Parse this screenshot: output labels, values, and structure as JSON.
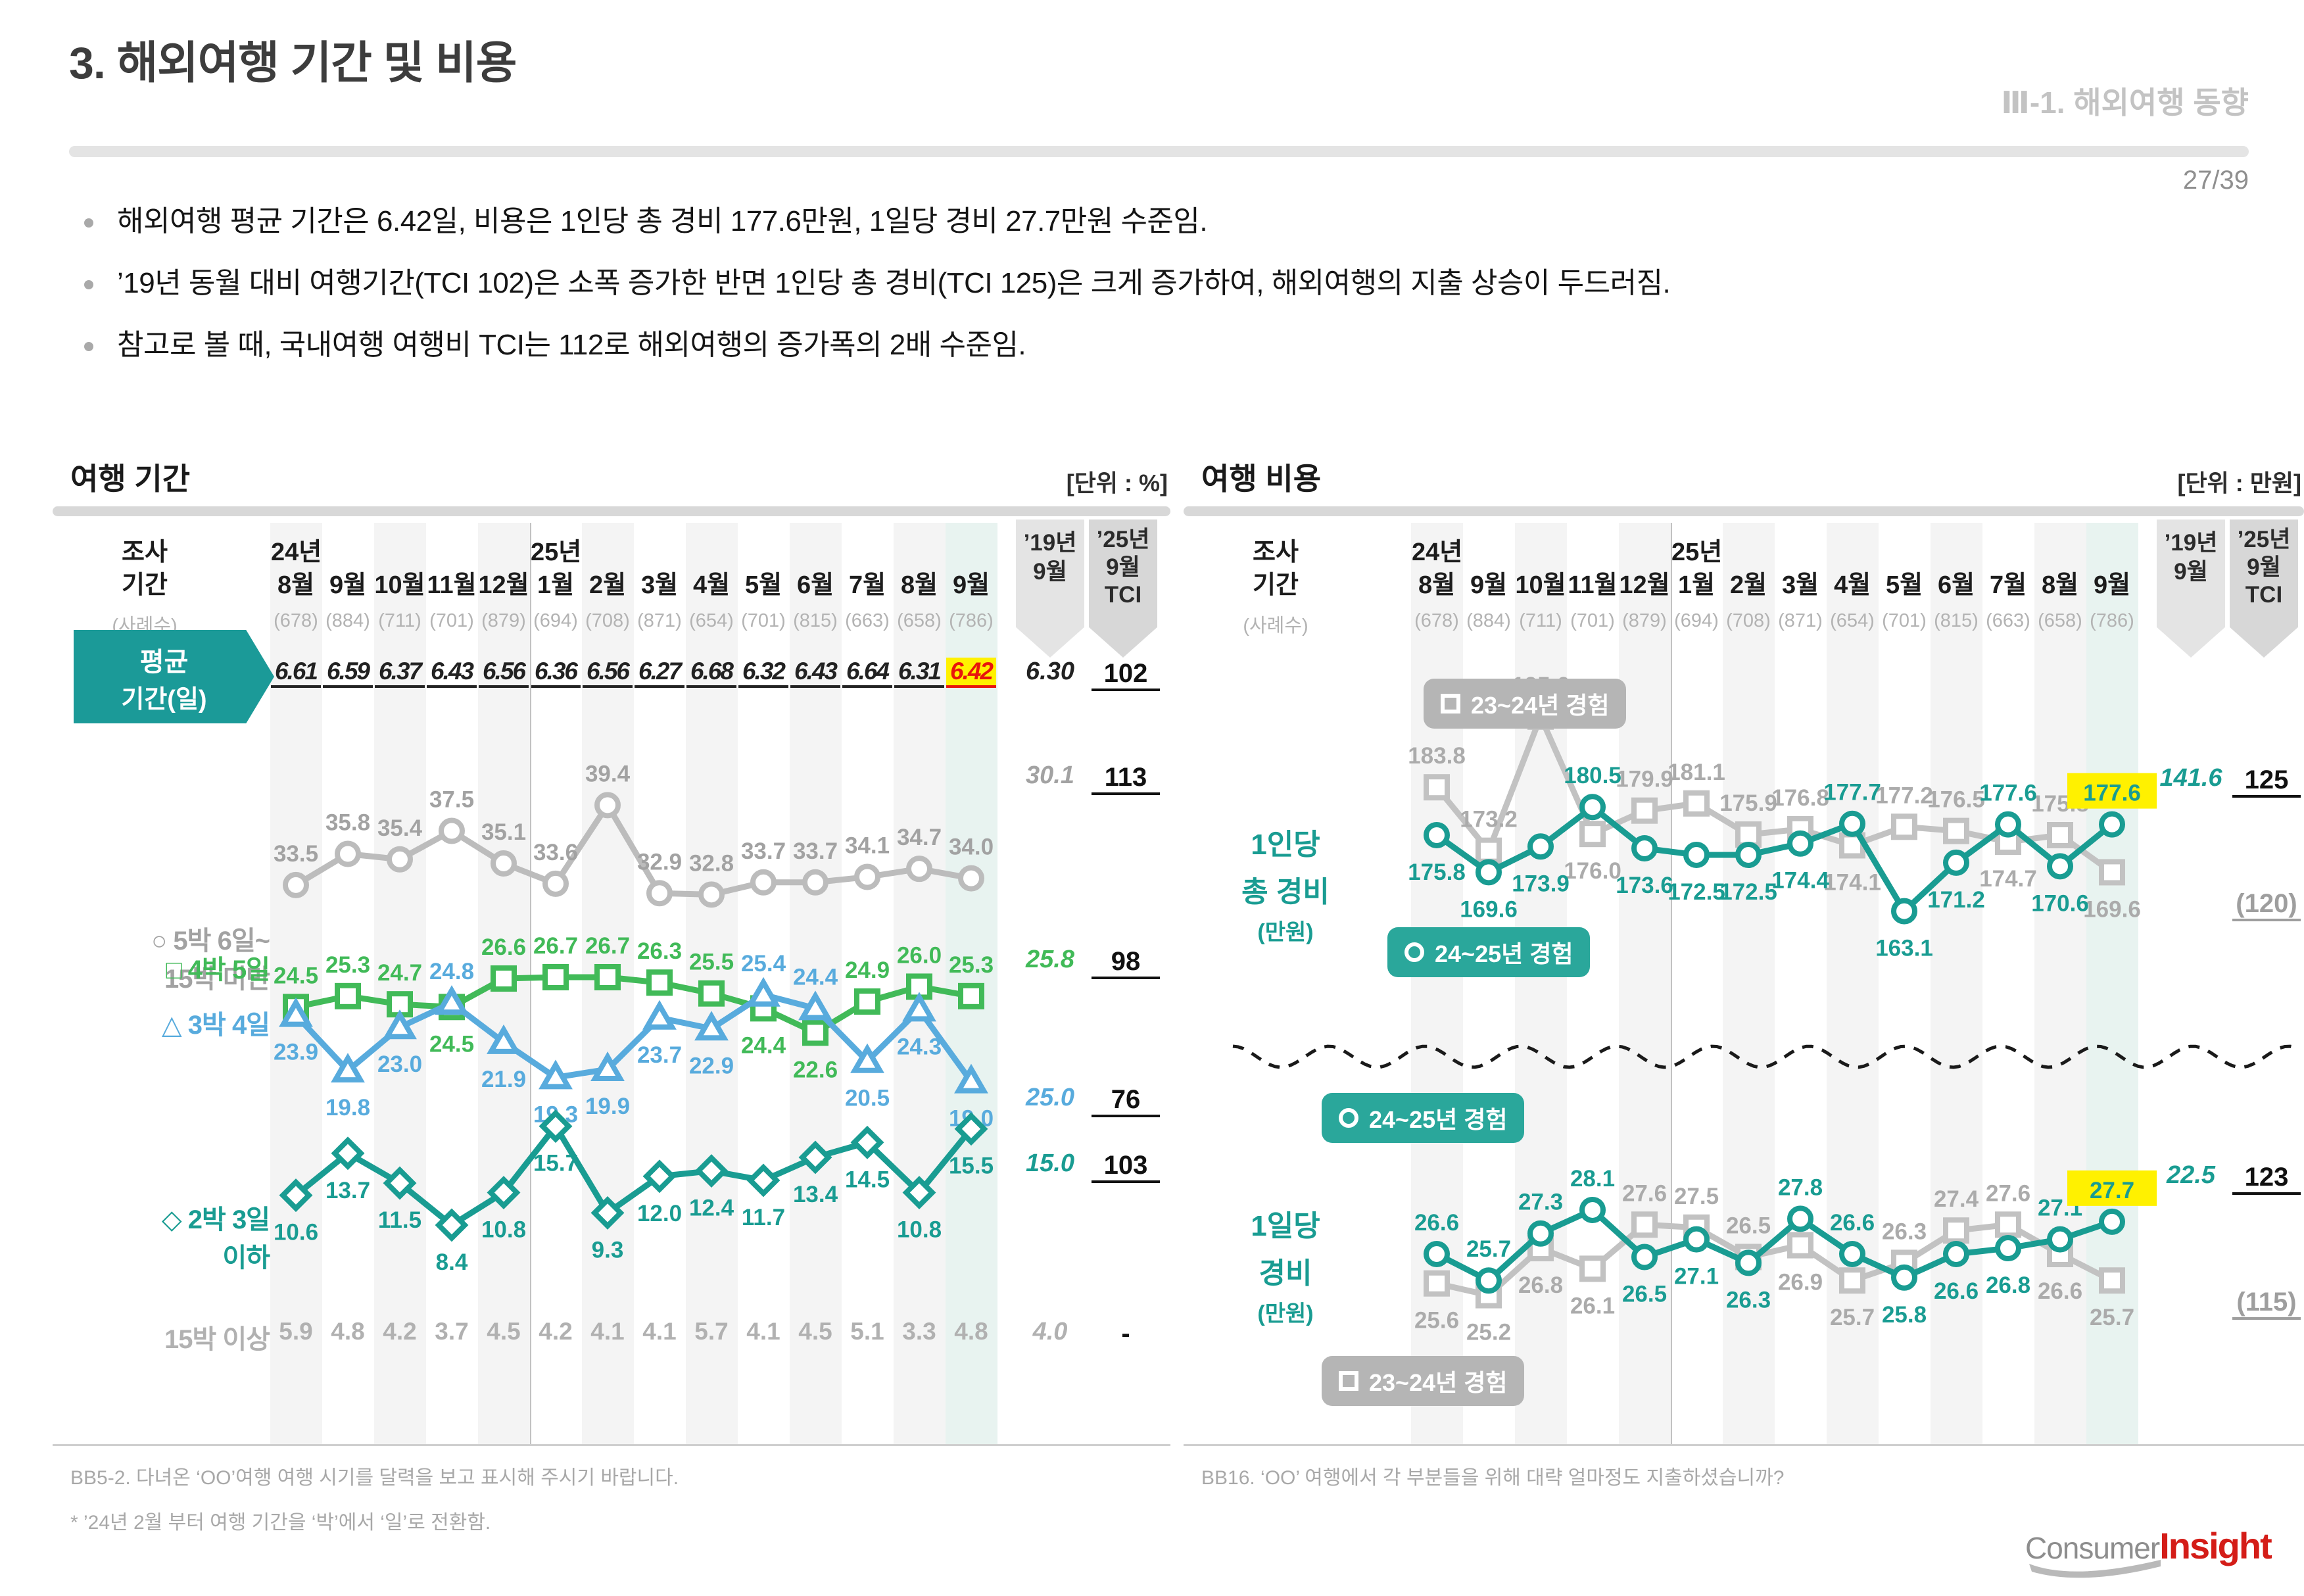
{
  "page": {
    "title": "3. 해외여행 기간 및 비용",
    "section_label": "Ⅲ-1. 해외여행 동향",
    "page_number": "27/39",
    "bullets": [
      "해외여행 평균 기간은 6.42일, 비용은 1인당 총 경비 177.6만원, 1일당 경비 27.7만원 수준임.",
      "’19년 동월 대비 여행기간(TCI 102)은 소폭 증가한 반면 1인당 총 경비(TCI 125)은 크게 증가하여, 해외여행의 지출 상승이 두드러짐.",
      "참고로 볼 때, 국내여행 여행비 TCI는 112로 해외여행의 증가폭의 2배 수준임."
    ],
    "logo": {
      "part1": "Consumer",
      "part2": "Insight"
    }
  },
  "table_header": {
    "col_label_line1": "조사",
    "col_label_line2": "기간",
    "sample_label": "(사례수)",
    "year_2024": "24년",
    "year_2025": "25년",
    "months": [
      "8월",
      "9월",
      "10월",
      "11월",
      "12월",
      "1월",
      "2월",
      "3월",
      "4월",
      "5월",
      "6월",
      "7월",
      "8월",
      "9월"
    ],
    "samples": [
      "(678)",
      "(884)",
      "(711)",
      "(701)",
      "(879)",
      "(694)",
      "(708)",
      "(871)",
      "(654)",
      "(701)",
      "(815)",
      "(663)",
      "(658)",
      "(786)"
    ],
    "ref_header": [
      "’19년",
      "9월"
    ],
    "tci_header": [
      "’25년",
      "9월",
      "TCI"
    ]
  },
  "icons": {
    "circle": "○",
    "square": "□",
    "triangle": "△",
    "diamond": "◇"
  },
  "duration_panel": {
    "title": "여행 기간",
    "unit": "[단위 : %]",
    "avg_badge_line1": "평균",
    "avg_badge_line2": "기간(일)",
    "row_labels": {
      "r1a": "5박 6일~",
      "r1b": "15박 미만",
      "r2": "4박 5일",
      "r3": "3박 4일",
      "r4a": "2박 3일",
      "r4b": "이하",
      "r5": "15박 이상"
    },
    "footnote1": "BB5-2. 다녀온 ‘OO’여행 여행 시기를 달력을 보고 표시해 주시기 바랍니다.",
    "footnote2": "* ’24년 2월 부터 여행 기간을 ‘박’에서 ‘일’로 전환함."
  },
  "cost_panel": {
    "title": "여행 비용",
    "unit": "[단위 : 만원]",
    "legend_old": "23~24년 경험",
    "legend_new": "24~25년 경험",
    "row1_label": [
      "1인당",
      "총 경비",
      "(만원)"
    ],
    "row2_label": [
      "1일당",
      "경비",
      "(만원)"
    ],
    "footnote1": "BB16. ‘OO’ 여행에서 각 부분들을 위해 대략 얼마정도 지출하셨습니까?"
  },
  "chart_data": [
    {
      "type": "line",
      "title": "여행 기간",
      "unit": "%",
      "x": [
        "24년 8월",
        "9월",
        "10월",
        "11월",
        "12월",
        "25년 1월",
        "2월",
        "3월",
        "4월",
        "5월",
        "6월",
        "7월",
        "8월",
        "9월"
      ],
      "legend_position": "left",
      "grid": false,
      "series": [
        {
          "name": "평균 기간(일)",
          "role": "value-row",
          "values": [
            6.61,
            6.59,
            6.37,
            6.43,
            6.56,
            6.36,
            6.56,
            6.27,
            6.68,
            6.32,
            6.43,
            6.64,
            6.31,
            6.42
          ],
          "ref_19sep": "6.30",
          "tci_25sep": "102",
          "highlight_last": true
        },
        {
          "name": "5박 6일~15박 미만",
          "marker": "circle",
          "color": "#bcbcbc",
          "label_color": "#a2a2a2",
          "values": [
            33.5,
            35.8,
            35.4,
            37.5,
            35.1,
            33.6,
            39.4,
            32.9,
            32.8,
            33.7,
            33.7,
            34.1,
            34.7,
            34.0
          ],
          "ref_19sep": "30.1",
          "tci_25sep": "113"
        },
        {
          "name": "4박 5일",
          "marker": "square",
          "color": "#41ba58",
          "values": [
            24.5,
            25.3,
            24.7,
            24.5,
            26.6,
            26.7,
            26.7,
            26.3,
            25.5,
            24.4,
            22.6,
            24.9,
            26.0,
            25.3
          ],
          "ref_19sep": "25.8",
          "tci_25sep": "98"
        },
        {
          "name": "3박 4일",
          "marker": "triangle",
          "color": "#58abdd",
          "values": [
            23.9,
            19.8,
            23.0,
            24.8,
            21.9,
            19.3,
            19.9,
            23.7,
            22.9,
            25.4,
            24.4,
            20.5,
            24.3,
            19.0
          ],
          "ref_19sep": "25.0",
          "tci_25sep": "76"
        },
        {
          "name": "2박 3일 이하",
          "marker": "diamond",
          "color": "#199c92",
          "values": [
            10.6,
            13.7,
            11.5,
            8.4,
            10.8,
            15.7,
            9.3,
            12.0,
            12.4,
            11.7,
            13.4,
            14.5,
            10.8,
            15.5
          ],
          "ref_19sep": "15.0",
          "tci_25sep": "103",
          "highlight_last_row": true
        },
        {
          "name": "15박 이상",
          "role": "text-row",
          "color": "#b1b1b1",
          "values": [
            5.9,
            4.8,
            4.2,
            3.7,
            4.5,
            4.2,
            4.1,
            4.1,
            5.7,
            4.1,
            4.5,
            5.1,
            3.3,
            4.8
          ],
          "ref_19sep": "4.0",
          "tci_25sep": "-"
        }
      ]
    },
    {
      "type": "line",
      "title": "여행 비용",
      "unit": "만원",
      "x": [
        "24년 8월",
        "9월",
        "10월",
        "11월",
        "12월",
        "25년 1월",
        "2월",
        "3월",
        "4월",
        "5월",
        "6월",
        "7월",
        "8월",
        "9월"
      ],
      "groups": [
        {
          "name": "1인당 총 경비",
          "series": [
            {
              "name": "23~24년 경험",
              "marker": "square",
              "color": "#c2c2c2",
              "label_color": "#ababab",
              "values": [
                183.8,
                173.2,
                195.6,
                176.0,
                179.9,
                181.1,
                175.9,
                176.8,
                174.1,
                177.2,
                176.5,
                174.7,
                175.8,
                169.6
              ],
              "tci_25sep": "(120)"
            },
            {
              "name": "24~25년 경험",
              "marker": "circle",
              "color": "#199c92",
              "values": [
                175.8,
                169.6,
                173.9,
                180.5,
                173.6,
                172.5,
                172.5,
                174.4,
                177.7,
                163.1,
                171.2,
                177.6,
                170.6,
                177.6
              ],
              "ref_19sep": "141.6",
              "tci_25sep": "125",
              "highlight_last": true
            }
          ]
        },
        {
          "name": "1일당 경비",
          "series": [
            {
              "name": "23~24년 경험",
              "marker": "square",
              "color": "#c2c2c2",
              "label_color": "#ababab",
              "values": [
                25.6,
                25.2,
                26.8,
                26.1,
                27.6,
                27.5,
                26.5,
                26.9,
                25.7,
                26.3,
                27.4,
                27.6,
                26.6,
                25.7
              ],
              "tci_25sep": "(115)"
            },
            {
              "name": "24~25년 경험",
              "marker": "circle",
              "color": "#199c92",
              "values": [
                26.6,
                25.7,
                27.3,
                28.1,
                26.5,
                27.1,
                26.3,
                27.8,
                26.6,
                25.8,
                26.6,
                26.8,
                27.1,
                27.7
              ],
              "ref_19sep": "22.5",
              "tci_25sep": "123",
              "highlight_last": true
            }
          ]
        }
      ]
    }
  ]
}
